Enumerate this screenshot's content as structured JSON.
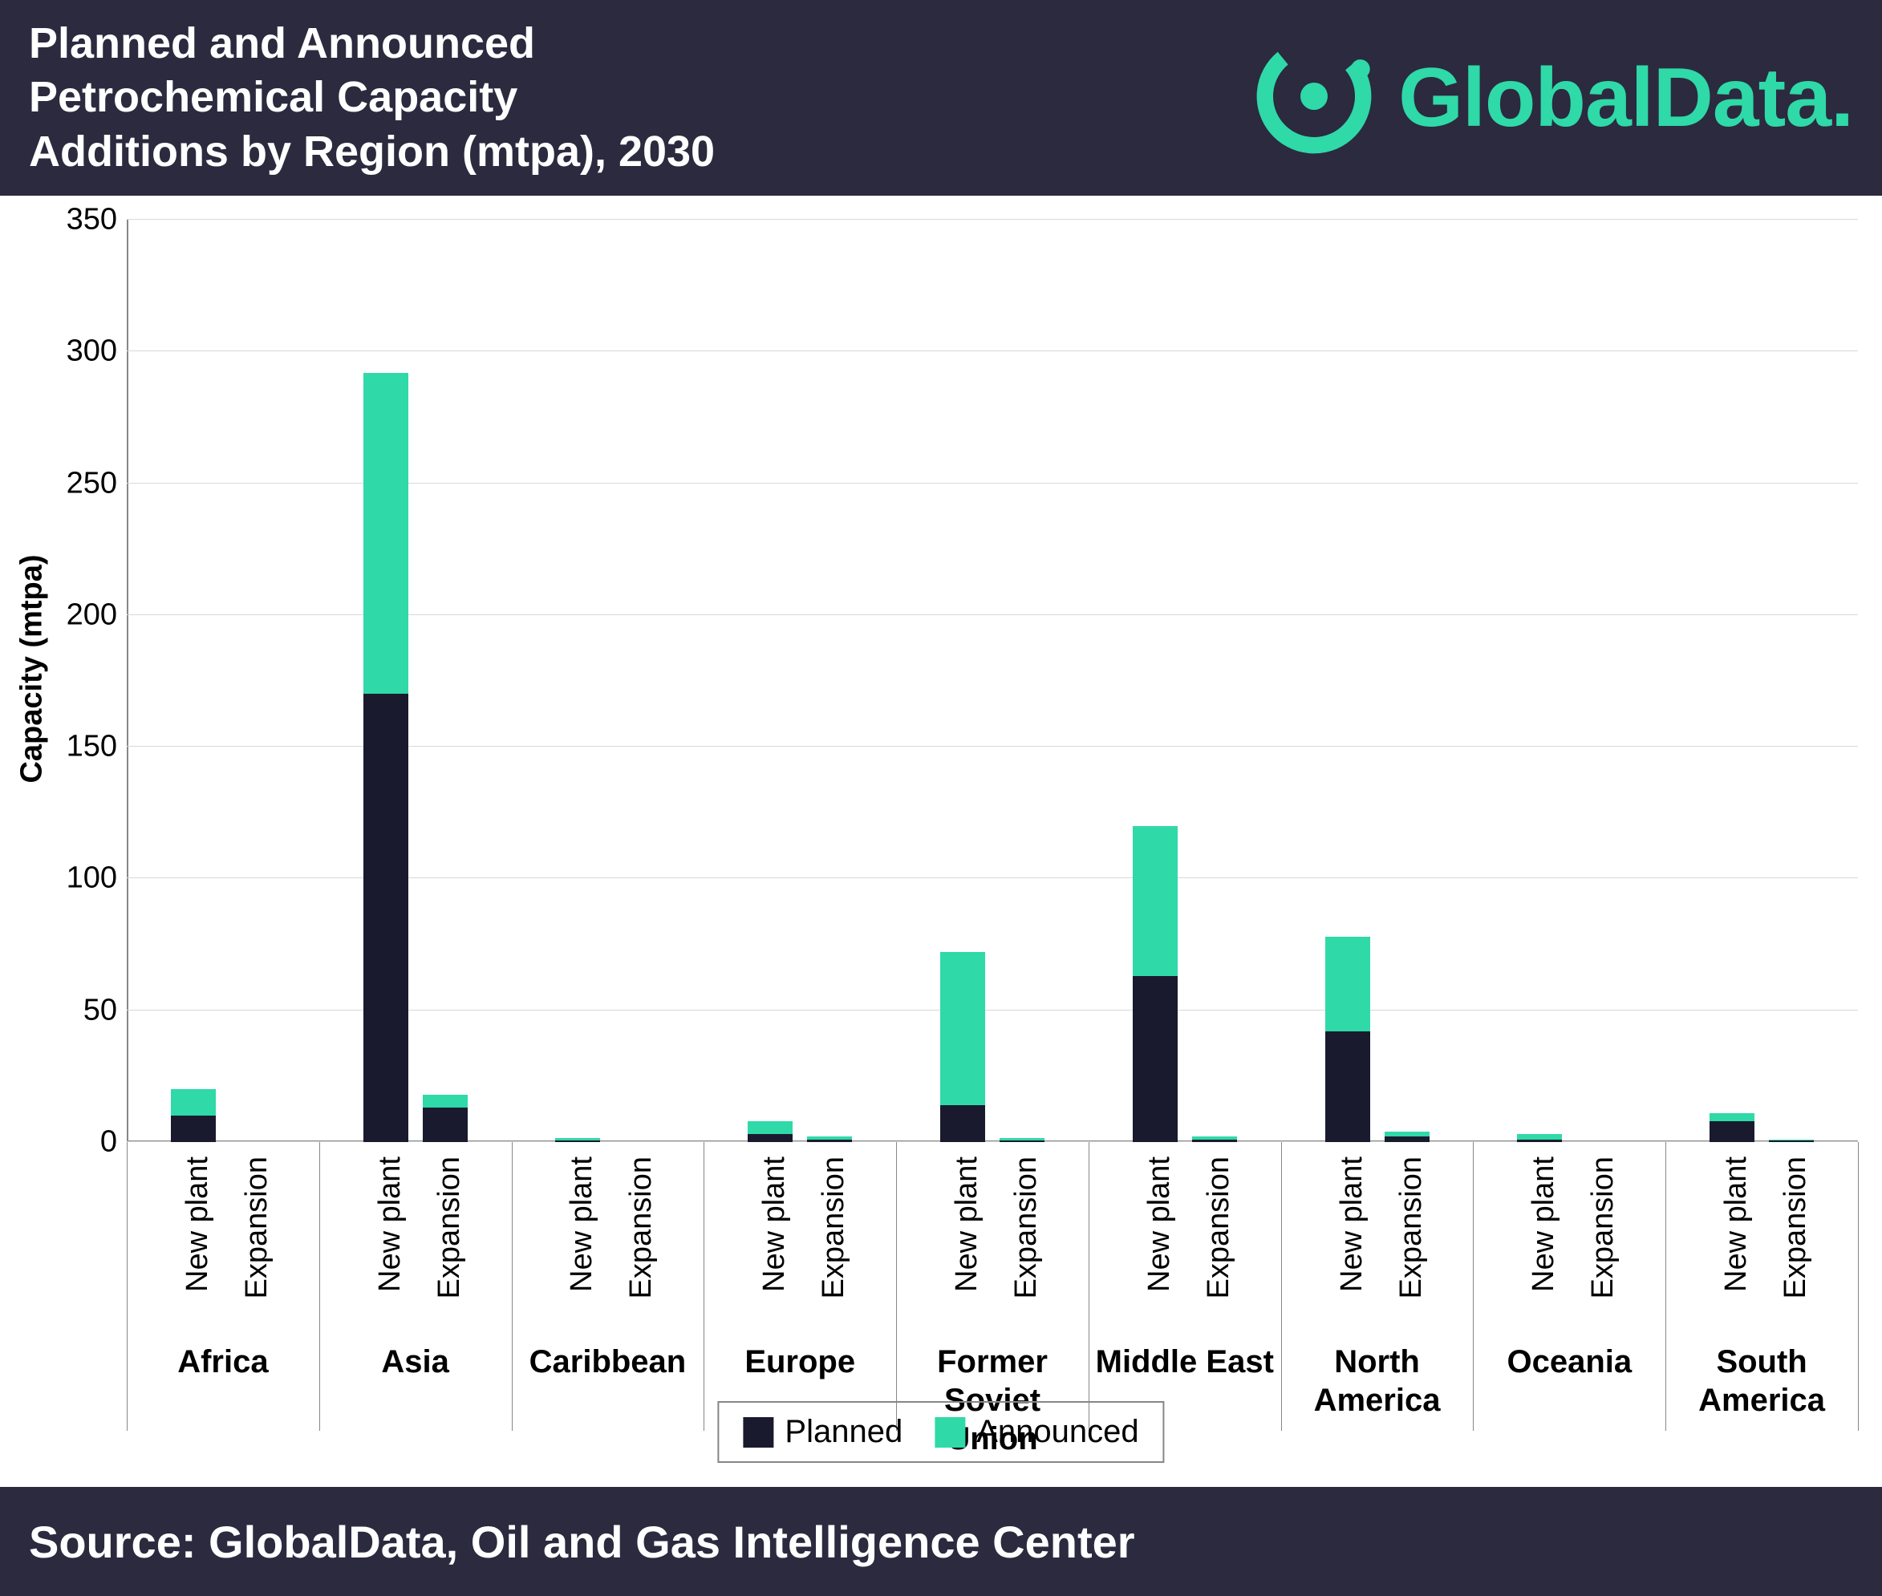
{
  "header": {
    "title_line1": "Planned and Announced",
    "title_line2": "Petrochemical Capacity",
    "title_line3": "Additions by Region (mtpa), 2030",
    "logo_text": "GlobalData.",
    "logo_color": "#2fd9a8"
  },
  "chart": {
    "type": "stacked-bar",
    "y_label": "Capacity (mtpa)",
    "ylim": [
      0,
      350
    ],
    "yticks": [
      0,
      50,
      100,
      150,
      200,
      250,
      300,
      350
    ],
    "grid_color": "#d9d9d9",
    "axis_color": "#878787",
    "background_color": "#ffffff",
    "tick_fontsize": 38,
    "label_fontsize": 38,
    "region_fontsize": 40,
    "series": [
      {
        "name": "Planned",
        "color": "#1a1a2e"
      },
      {
        "name": "Announced",
        "color": "#2fd9a8"
      }
    ],
    "sub_categories": [
      "New plant",
      "Expansion"
    ],
    "regions": [
      {
        "name": "Africa",
        "bars": [
          {
            "planned": 10,
            "announced": 10
          },
          {
            "planned": 0,
            "announced": 0
          }
        ]
      },
      {
        "name": "Asia",
        "bars": [
          {
            "planned": 170,
            "announced": 122
          },
          {
            "planned": 13,
            "announced": 5
          }
        ]
      },
      {
        "name": "Caribbean",
        "bars": [
          {
            "planned": 0.5,
            "announced": 1
          },
          {
            "planned": 0,
            "announced": 0
          }
        ]
      },
      {
        "name": "Europe",
        "bars": [
          {
            "planned": 3,
            "announced": 5
          },
          {
            "planned": 1,
            "announced": 1
          }
        ]
      },
      {
        "name": "Former Soviet Union",
        "bars": [
          {
            "planned": 14,
            "announced": 58
          },
          {
            "planned": 0.5,
            "announced": 1
          }
        ]
      },
      {
        "name": "Middle East",
        "bars": [
          {
            "planned": 63,
            "announced": 57
          },
          {
            "planned": 1,
            "announced": 1
          }
        ]
      },
      {
        "name": "North America",
        "bars": [
          {
            "planned": 42,
            "announced": 36
          },
          {
            "planned": 2,
            "announced": 2
          }
        ]
      },
      {
        "name": "Oceania",
        "bars": [
          {
            "planned": 1,
            "announced": 2
          },
          {
            "planned": 0,
            "announced": 0
          }
        ]
      },
      {
        "name": "South America",
        "bars": [
          {
            "planned": 8,
            "announced": 3
          },
          {
            "planned": 0.5,
            "announced": 0.5
          }
        ]
      }
    ]
  },
  "legend": {
    "items": [
      {
        "label": "Planned",
        "color": "#1a1a2e"
      },
      {
        "label": "Announced",
        "color": "#2fd9a8"
      }
    ]
  },
  "footer": {
    "text": "Source: GlobalData, Oil and Gas Intelligence Center"
  }
}
